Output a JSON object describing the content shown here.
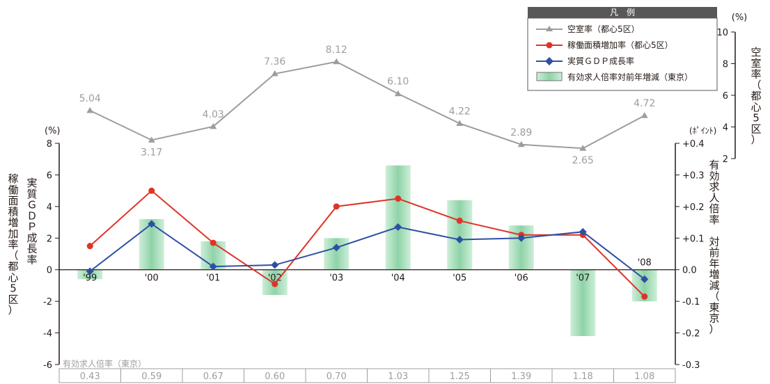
{
  "chart_data": {
    "type": "line",
    "categories": [
      "'99",
      "'00",
      "'01",
      "'02",
      "'03",
      "'04",
      "'05",
      "'06",
      "'07",
      "'08"
    ],
    "legend": {
      "title": "凡　例",
      "placement": "top-right",
      "entries": [
        "空室率（都心5区）",
        "稼働面積増加率（都心5区）",
        "実質ＧＤＰ成長率",
        "有効求人倍率対前年増減（東京）"
      ]
    },
    "vacancy": {
      "name": "空室率（都心5区）",
      "unit_label": "(%)",
      "axis_title": "空室率（都心5区）",
      "ylim": [
        2,
        10
      ],
      "ticks": [
        "2",
        "4",
        "6",
        "8",
        "10"
      ],
      "color": "#9b9d9f",
      "values": [
        5.04,
        3.17,
        4.03,
        7.36,
        8.12,
        6.1,
        4.22,
        2.89,
        2.65,
        4.72
      ],
      "labels": [
        "5.04",
        "3.17",
        "4.03",
        "7.36",
        "8.12",
        "6.10",
        "4.22",
        "2.89",
        "2.65",
        "4.72"
      ]
    },
    "left_axis": {
      "unit_label": "(%)",
      "title_gdp": "実質ＧＤＰ成長率",
      "title_area": "稼働面積増加率（都心5区）",
      "ylim": [
        -6,
        8
      ],
      "ticks": [
        "-6",
        "-4",
        "-2",
        "0",
        "2",
        "4",
        "6",
        "8"
      ]
    },
    "right_axis": {
      "unit_label": "(ﾎﾟｲﾝﾄ)",
      "title": "有効求人倍率 対前年増減（東京）",
      "ylim": [
        -0.3,
        0.4
      ],
      "ticks": [
        "-0.3",
        "-0.2",
        "-0.1",
        "0.0",
        "+0.1",
        "+0.2",
        "+0.3",
        "+0.4"
      ]
    },
    "series": [
      {
        "name": "稼働面積増加率（都心5区）",
        "color": "#e03327",
        "values": [
          1.5,
          5.0,
          1.7,
          -0.9,
          4.0,
          4.5,
          3.1,
          2.2,
          2.2,
          -1.7
        ]
      },
      {
        "name": "実質ＧＤＰ成長率",
        "color": "#2e4fa3",
        "values": [
          -0.1,
          2.9,
          0.2,
          0.3,
          1.4,
          2.7,
          1.9,
          2.0,
          2.4,
          -0.6
        ]
      }
    ],
    "bars": {
      "name": "有効求人倍率対前年増減（東京）",
      "values": [
        -0.03,
        0.16,
        0.09,
        -0.08,
        0.1,
        0.33,
        0.22,
        0.14,
        -0.21,
        -0.1
      ]
    },
    "table": {
      "title": "有効求人倍率（東京）",
      "values": [
        "0.43",
        "0.59",
        "0.67",
        "0.60",
        "0.70",
        "1.03",
        "1.25",
        "1.39",
        "1.18",
        "1.08"
      ]
    }
  }
}
